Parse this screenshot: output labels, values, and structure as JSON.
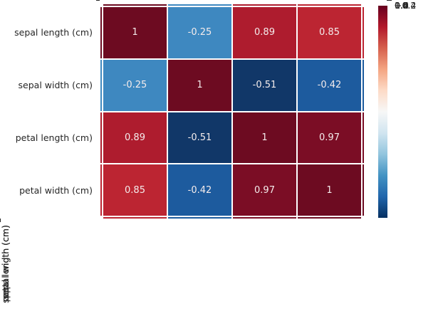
{
  "chart_data": {
    "type": "heatmap",
    "title": "",
    "xlabel": "",
    "ylabel": "",
    "x_categories": [
      "sepal length (cm)",
      "sepal width (cm)",
      "petal length (cm)",
      "petal width (cm)"
    ],
    "y_categories": [
      "sepal length (cm)",
      "sepal width (cm)",
      "petal length (cm)",
      "petal width (cm)"
    ],
    "matrix": [
      [
        1,
        -0.25,
        0.89,
        0.85
      ],
      [
        -0.25,
        1,
        -0.51,
        -0.42
      ],
      [
        0.89,
        -0.51,
        1,
        0.97
      ],
      [
        0.85,
        -0.42,
        0.97,
        1
      ]
    ],
    "cell_labels": [
      [
        "1",
        "-0.25",
        "0.89",
        "0.85"
      ],
      [
        "-0.25",
        "1",
        "-0.51",
        "-0.42"
      ],
      [
        "0.89",
        "-0.51",
        "1",
        "0.97"
      ],
      [
        "0.85",
        "-0.42",
        "0.97",
        "1"
      ]
    ],
    "cell_colors": [
      [
        "#6d0b21",
        "#3e88c0",
        "#ae1c2e",
        "#bc2532"
      ],
      [
        "#3e88c0",
        "#6d0b21",
        "#113768",
        "#1d5b9e"
      ],
      [
        "#ae1c2e",
        "#113768",
        "#6d0b21",
        "#7b0d25"
      ],
      [
        "#bc2532",
        "#1d5b9e",
        "#7b0d25",
        "#6d0b21"
      ]
    ],
    "colormap": "RdBu_r",
    "vmin": -0.51,
    "vmax": 1.0,
    "legend_position": "right-colorbar",
    "grid": false,
    "annotation_text_color": "#f4ecec",
    "axis_text_color": "#262626",
    "cell_gap_color": "#ffffff",
    "colorbar": {
      "tick_labels": [
        "1.0",
        "0.8",
        "0.6",
        "0.4",
        "0.2",
        "0.0",
        "−0.2",
        "−0.4"
      ],
      "gradient_stops": [
        "#67001f 0%",
        "#b2182b 10%",
        "#d6604d 20%",
        "#f4a582 30%",
        "#fddbc7 40%",
        "#f7f7f7 50%",
        "#d1e5f0 60%",
        "#92c5de 70%",
        "#4393c3 80%",
        "#2166ac 90%",
        "#053061 100%"
      ]
    }
  }
}
